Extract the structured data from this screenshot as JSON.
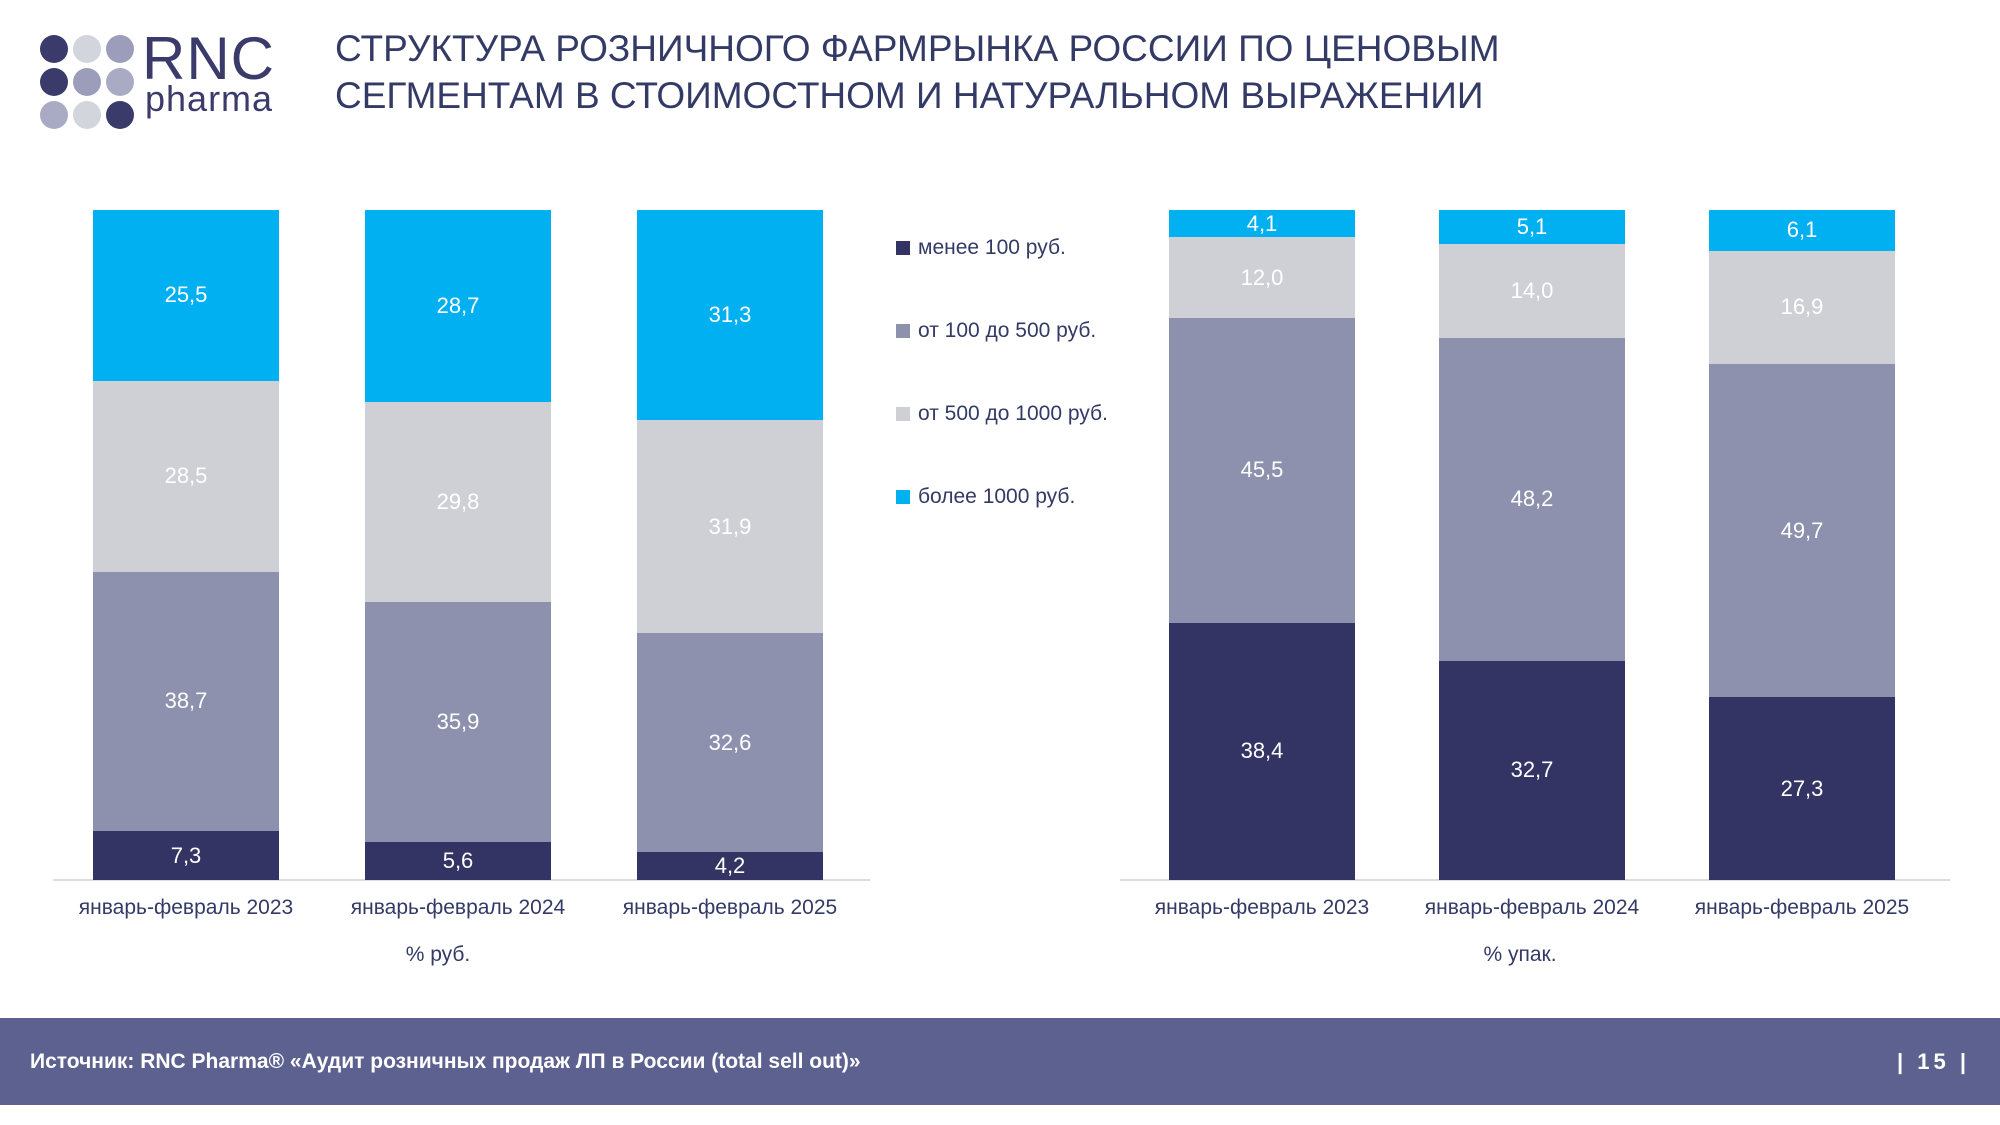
{
  "logo": {
    "brand": "RNC",
    "sub": "pharma",
    "dot_colors": [
      "#3a3a6b",
      "#d3d5dd",
      "#9b9dbb",
      "#3a3a6b",
      "#9b9dbb",
      "#a9abc5",
      "#a9abc5",
      "#d3d5dd",
      "#3a3a6b"
    ]
  },
  "title": {
    "line1": "СТРУКТУРА РОЗНИЧНОГО ФАРМРЫНКА РОССИИ ПО ЦЕНОВЫМ",
    "line2": "СЕГМЕНТАМ В СТОИМОСТНОМ И НАТУРАЛЬНОМ ВЫРАЖЕНИИ"
  },
  "legend": [
    {
      "label": "менее 100 руб.",
      "color": "#343464"
    },
    {
      "label": "от 100 до 500 руб.",
      "color": "#8e91ad"
    },
    {
      "label": "от 500 до 1000 руб.",
      "color": "#ced0d6"
    },
    {
      "label": "более 1000 руб.",
      "color": "#00b0f0"
    }
  ],
  "colors": {
    "segment_navy": "#343464",
    "segment_gray_purple": "#8e91ad",
    "segment_light_gray": "#ced0d6",
    "segment_blue": "#00b0f0",
    "text_navy": "#333a66",
    "footer_bar": "#5c6190",
    "axis_line": "#dcdcdc",
    "value_label": "#ffffff"
  },
  "chart_data": [
    {
      "type": "bar",
      "stacked": true,
      "unit_label": "% руб.",
      "categories": [
        "январь-февраль 2023",
        "январь-февраль 2024",
        "январь-февраль 2025"
      ],
      "series": [
        {
          "name": "менее 100 руб.",
          "color": "#343464",
          "values": [
            7.3,
            5.6,
            4.2
          ]
        },
        {
          "name": "от 100 до 500 руб.",
          "color": "#8e91ad",
          "values": [
            38.7,
            35.9,
            32.6
          ]
        },
        {
          "name": "от 500 до 1000 руб.",
          "color": "#ced0d6",
          "values": [
            28.5,
            29.8,
            31.9
          ]
        },
        {
          "name": "более 1000 руб.",
          "color": "#00b0f0",
          "values": [
            25.5,
            28.7,
            31.3
          ]
        }
      ],
      "ylim": [
        0,
        100
      ],
      "grid": false,
      "value_labels_inside": true,
      "decimal_separator": ","
    },
    {
      "type": "bar",
      "stacked": true,
      "unit_label": "% упак.",
      "categories": [
        "январь-февраль 2023",
        "январь-февраль 2024",
        "январь-февраль 2025"
      ],
      "series": [
        {
          "name": "менее 100 руб.",
          "color": "#343464",
          "values": [
            38.4,
            32.7,
            27.3
          ]
        },
        {
          "name": "от 100 до 500 руб.",
          "color": "#8e91ad",
          "values": [
            45.5,
            48.2,
            49.7
          ]
        },
        {
          "name": "от 500 до 1000 руб.",
          "color": "#ced0d6",
          "values": [
            12.0,
            14.0,
            16.9
          ]
        },
        {
          "name": "более 1000 руб.",
          "color": "#00b0f0",
          "values": [
            4.1,
            5.1,
            6.1
          ]
        }
      ],
      "ylim": [
        0,
        100
      ],
      "grid": false,
      "value_labels_inside": true,
      "decimal_separator": ","
    }
  ],
  "footer": {
    "source": "Источник: RNC Pharma® «Аудит розничных продаж ЛП в России (total sell out)»",
    "page": "15",
    "page_display": "| 15 |"
  }
}
